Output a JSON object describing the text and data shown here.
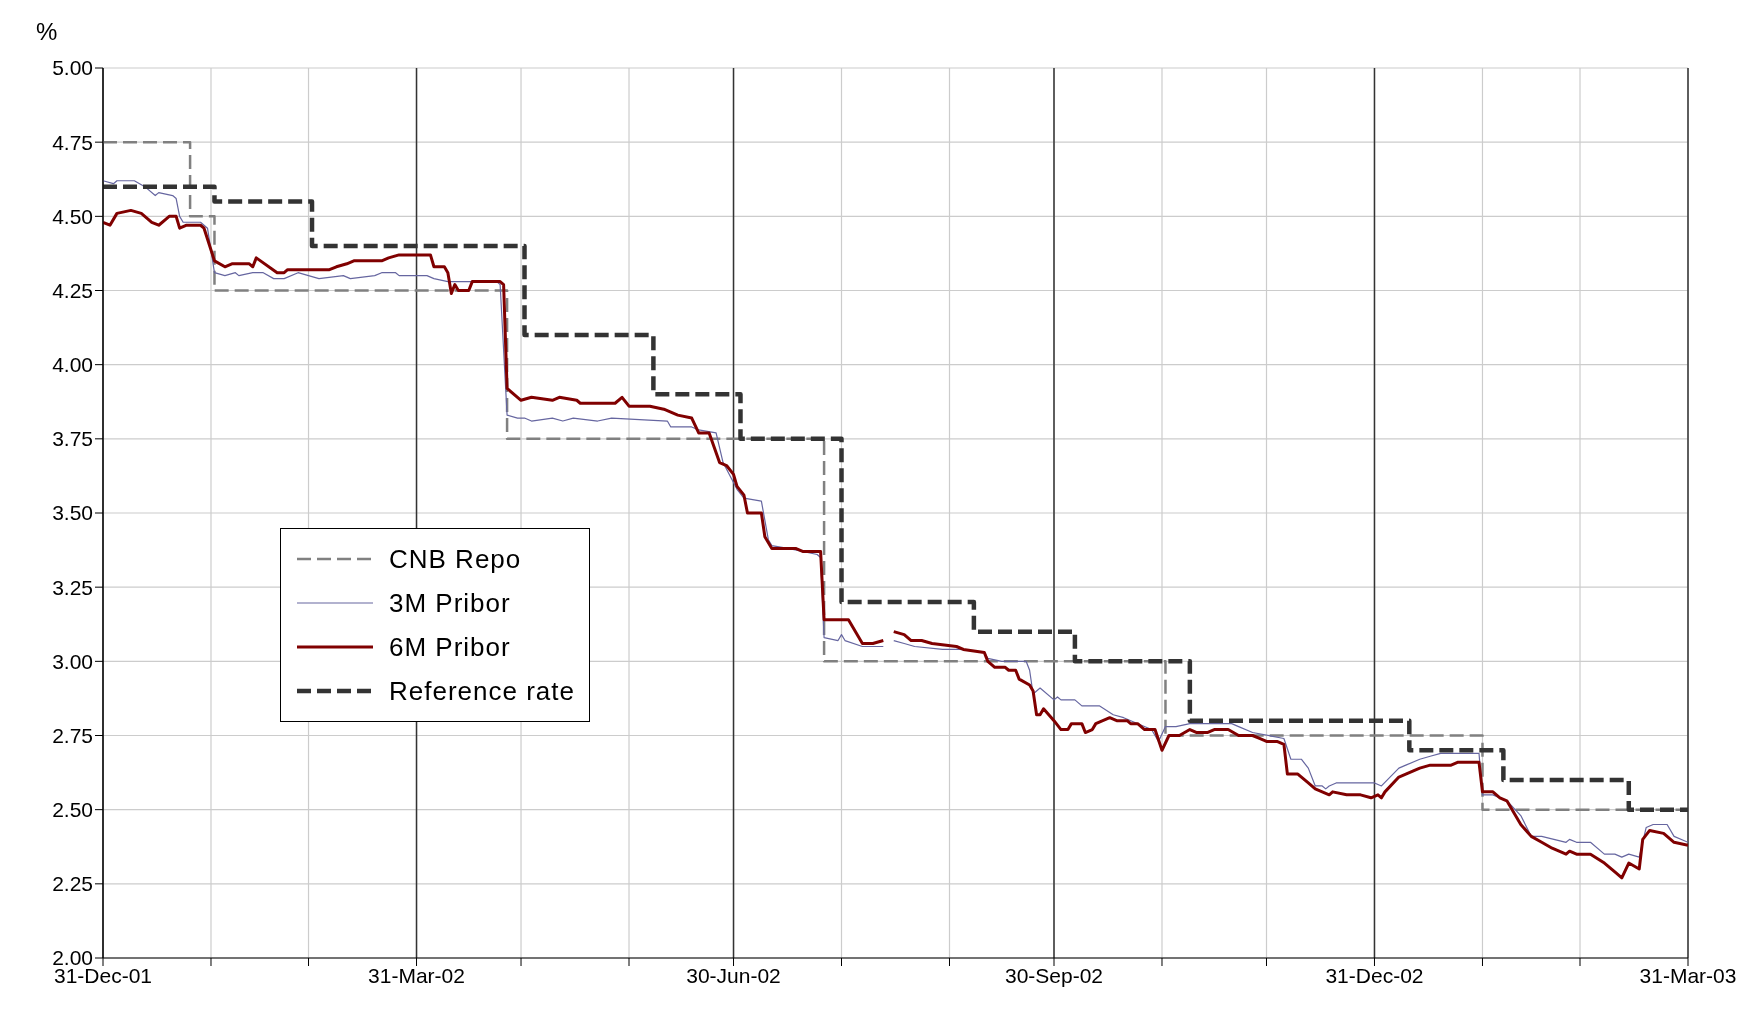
{
  "chart_data": {
    "type": "line",
    "ylabel": "%",
    "xlim": [
      "2001-12-31",
      "2003-03-31"
    ],
    "ylim": [
      2,
      5
    ],
    "yticks": [
      {
        "value": 2,
        "label": "2.00"
      },
      {
        "value": 2.25,
        "label": "2.25"
      },
      {
        "value": 2.5,
        "label": "2.50"
      },
      {
        "value": 2.75,
        "label": "2.75"
      },
      {
        "value": 3,
        "label": "3.00"
      },
      {
        "value": 3.25,
        "label": "3.25"
      },
      {
        "value": 3.5,
        "label": "3.50"
      },
      {
        "value": 3.75,
        "label": "3.75"
      },
      {
        "value": 4,
        "label": "4.00"
      },
      {
        "value": 4.25,
        "label": "4.25"
      },
      {
        "value": 4.5,
        "label": "4.50"
      },
      {
        "value": 4.75,
        "label": "4.75"
      },
      {
        "value": 5,
        "label": "5.00"
      }
    ],
    "xticks": [
      {
        "value": "2001-12-31",
        "label": "31-Dec-01"
      },
      {
        "value": "2002-01-31",
        "label": null
      },
      {
        "value": "2002-02-28",
        "label": null
      },
      {
        "value": "2002-03-31",
        "label": "31-Mar-02"
      },
      {
        "value": "2002-04-30",
        "label": null
      },
      {
        "value": "2002-05-31",
        "label": null
      },
      {
        "value": "2002-06-30",
        "label": "30-Jun-02"
      },
      {
        "value": "2002-07-31",
        "label": null
      },
      {
        "value": "2002-08-31",
        "label": null
      },
      {
        "value": "2002-09-30",
        "label": "30-Sep-02"
      },
      {
        "value": "2002-10-31",
        "label": null
      },
      {
        "value": "2002-11-30",
        "label": null
      },
      {
        "value": "2002-12-31",
        "label": "31-Dec-02"
      },
      {
        "value": "2003-01-31",
        "label": null
      },
      {
        "value": "2003-02-28",
        "label": null
      },
      {
        "value": "2003-03-31",
        "label": "31-Mar-03"
      }
    ],
    "grid": true,
    "legend": "center left",
    "marker": "none",
    "series": [
      {
        "name": "CNB Repo",
        "type": "step",
        "line_style": "dashed",
        "color": "#808080",
        "x": [
          "2001-12-31",
          "2002-01-25",
          "2002-02-01",
          "2002-04-26",
          "2002-07-26",
          "2002-11-01",
          "2003-01-31",
          "2003-03-31"
        ],
        "values": [
          4.75,
          4.5,
          4.25,
          3.75,
          3.0,
          2.75,
          2.5,
          2.5
        ]
      },
      {
        "name": "3M Pribor",
        "color": "#6666a0",
        "x": [
          "2001-12-31",
          "2002-01-03",
          "2002-01-04",
          "2002-01-09",
          "2002-01-12",
          "2002-01-15",
          "2002-01-16",
          "2002-01-20",
          "2002-01-21",
          "2002-01-22",
          "2002-01-23",
          "2002-01-28",
          "2002-01-30",
          "2002-02-01",
          "2002-02-04",
          "2002-02-07",
          "2002-02-08",
          "2002-02-12",
          "2002-02-15",
          "2002-02-18",
          "2002-02-21",
          "2002-02-25",
          "2002-03-03",
          "2002-03-10",
          "2002-03-12",
          "2002-03-19",
          "2002-03-21",
          "2002-03-25",
          "2002-03-26",
          "2002-04-03",
          "2002-04-05",
          "2002-04-09",
          "2002-04-23",
          "2002-04-24",
          "2002-04-26",
          "2002-04-29",
          "2002-05-01",
          "2002-05-03",
          "2002-05-09",
          "2002-05-12",
          "2002-05-15",
          "2002-05-22",
          "2002-05-26",
          "2002-06-11",
          "2002-06-12",
          "2002-06-18",
          "2002-06-20",
          "2002-06-25",
          "2002-06-27",
          "2002-07-01",
          "2002-07-03",
          "2002-07-08",
          "2002-07-10",
          "2002-07-11",
          "2002-07-16",
          "2002-07-24",
          "2002-07-25",
          "2002-07-26",
          "2002-07-30",
          "2002-07-31",
          "2002-08-01",
          "2002-08-06",
          "2002-08-12",
          "2002-08-13",
          "2002-08-15",
          "2002-08-18",
          "2002-08-21",
          "2002-08-29",
          "2002-09-03",
          "2002-09-10",
          "2002-09-11",
          "2002-09-15",
          "2002-09-22",
          "2002-09-23",
          "2002-09-24",
          "2002-09-26",
          "2002-09-30",
          "2002-10-01",
          "2002-10-02",
          "2002-10-06",
          "2002-10-08",
          "2002-10-13",
          "2002-10-17",
          "2002-10-20",
          "2002-10-28",
          "2002-10-30",
          "2002-11-01",
          "2002-11-04",
          "2002-11-08",
          "2002-11-20",
          "2002-11-22",
          "2002-11-26",
          "2002-12-05",
          "2002-12-07",
          "2002-12-10",
          "2002-12-12",
          "2002-12-14",
          "2002-12-16",
          "2002-12-17",
          "2002-12-18",
          "2002-12-20",
          "2002-12-31",
          "2003-01-02",
          "2003-01-07",
          "2003-01-09",
          "2003-01-13",
          "2003-01-16",
          "2003-01-19",
          "2003-01-30",
          "2003-01-31",
          "2003-02-03",
          "2003-02-07",
          "2003-02-11",
          "2003-02-14",
          "2003-02-17",
          "2003-02-24",
          "2003-02-25",
          "2003-02-27",
          "2003-03-03",
          "2003-03-07",
          "2003-03-10",
          "2003-03-12",
          "2003-03-14",
          "2003-03-17",
          "2003-03-19",
          "2003-03-21",
          "2003-03-25",
          "2003-03-27",
          "2003-03-31"
        ],
        "values": [
          4.62,
          4.61,
          4.62,
          4.62,
          4.6,
          4.57,
          4.58,
          4.57,
          4.56,
          4.5,
          4.48,
          4.48,
          4.46,
          4.31,
          4.3,
          4.31,
          4.3,
          4.31,
          4.31,
          4.29,
          4.29,
          4.31,
          4.29,
          4.3,
          4.29,
          4.3,
          4.31,
          4.31,
          4.3,
          4.3,
          4.29,
          4.28,
          4.28,
          4.27,
          3.83,
          3.82,
          3.82,
          3.81,
          3.82,
          3.81,
          3.82,
          3.81,
          3.82,
          3.81,
          3.79,
          3.79,
          3.78,
          3.77,
          3.67,
          3.58,
          3.55,
          3.54,
          3.41,
          3.39,
          3.38,
          3.36,
          3.35,
          3.08,
          3.07,
          3.09,
          3.07,
          3.05,
          3.05,
          null,
          3.07,
          3.06,
          3.05,
          3.04,
          3.04,
          3.03,
          3.01,
          3.0,
          3.0,
          2.97,
          2.89,
          2.91,
          2.87,
          2.88,
          2.87,
          2.87,
          2.85,
          2.85,
          2.82,
          2.81,
          2.77,
          2.73,
          2.78,
          2.78,
          2.79,
          2.79,
          2.78,
          2.76,
          2.74,
          2.67,
          2.67,
          2.64,
          2.58,
          2.58,
          2.57,
          2.58,
          2.59,
          2.59,
          2.58,
          2.64,
          2.65,
          2.67,
          2.68,
          2.69,
          2.69,
          2.55,
          2.55,
          2.53,
          2.48,
          2.41,
          2.41,
          2.39,
          2.4,
          2.39,
          2.39,
          2.35,
          2.35,
          2.34,
          2.35,
          2.34,
          2.44,
          2.45,
          2.45,
          2.41,
          2.39
        ]
      },
      {
        "name": "6M Pribor",
        "color": "#800000",
        "x": [
          "2001-12-31",
          "2002-01-02",
          "2002-01-04",
          "2002-01-08",
          "2002-01-11",
          "2002-01-14",
          "2002-01-16",
          "2002-01-18",
          "2002-01-19",
          "2002-01-21",
          "2002-01-22",
          "2002-01-24",
          "2002-01-28",
          "2002-01-29",
          "2002-02-01",
          "2002-02-04",
          "2002-02-06",
          "2002-02-11",
          "2002-02-12",
          "2002-02-13",
          "2002-02-19",
          "2002-02-21",
          "2002-02-22",
          "2002-03-06",
          "2002-03-08",
          "2002-03-11",
          "2002-03-13",
          "2002-03-21",
          "2002-03-23",
          "2002-03-26",
          "2002-04-04",
          "2002-04-05",
          "2002-04-08",
          "2002-04-09",
          "2002-04-10",
          "2002-04-11",
          "2002-04-12",
          "2002-04-15",
          "2002-04-16",
          "2002-04-24",
          "2002-04-25",
          "2002-04-26",
          "2002-04-30",
          "2002-05-03",
          "2002-05-09",
          "2002-05-11",
          "2002-05-16",
          "2002-05-17",
          "2002-05-27",
          "2002-05-29",
          "2002-05-31",
          "2002-06-06",
          "2002-06-10",
          "2002-06-12",
          "2002-06-14",
          "2002-06-18",
          "2002-06-20",
          "2002-06-23",
          "2002-06-26",
          "2002-06-28",
          "2002-06-30",
          "2002-07-01",
          "2002-07-03",
          "2002-07-04",
          "2002-07-08",
          "2002-07-09",
          "2002-07-11",
          "2002-07-18",
          "2002-07-20",
          "2002-07-25",
          "2002-07-26",
          "2002-08-02",
          "2002-08-06",
          "2002-08-09",
          "2002-08-12",
          "2002-08-13",
          "2002-08-15",
          "2002-08-18",
          "2002-08-20",
          "2002-08-23",
          "2002-08-26",
          "2002-09-02",
          "2002-09-04",
          "2002-09-10",
          "2002-09-11",
          "2002-09-13",
          "2002-09-16",
          "2002-09-17",
          "2002-09-19",
          "2002-09-20",
          "2002-09-23",
          "2002-09-24",
          "2002-09-25",
          "2002-09-26",
          "2002-09-27",
          "2002-09-30",
          "2002-10-02",
          "2002-10-04",
          "2002-10-05",
          "2002-10-08",
          "2002-10-09",
          "2002-10-11",
          "2002-10-12",
          "2002-10-16",
          "2002-10-18",
          "2002-10-21",
          "2002-10-22",
          "2002-10-24",
          "2002-10-26",
          "2002-10-29",
          "2002-10-31",
          "2002-11-02",
          "2002-11-05",
          "2002-11-08",
          "2002-11-10",
          "2002-11-13",
          "2002-11-15",
          "2002-11-19",
          "2002-11-22",
          "2002-11-26",
          "2002-11-28",
          "2002-11-30",
          "2002-12-03",
          "2002-12-05",
          "2002-12-06",
          "2002-12-09",
          "2002-12-12",
          "2002-12-14",
          "2002-12-16",
          "2002-12-18",
          "2002-12-19",
          "2002-12-23",
          "2002-12-27",
          "2002-12-30",
          "2003-01-01",
          "2003-01-02",
          "2003-01-03",
          "2003-01-07",
          "2003-01-09",
          "2003-01-13",
          "2003-01-16",
          "2003-01-22",
          "2003-01-24",
          "2003-01-30",
          "2003-01-31",
          "2003-02-03",
          "2003-02-05",
          "2003-02-07",
          "2003-02-11",
          "2003-02-14",
          "2003-02-17",
          "2003-02-20",
          "2003-02-24",
          "2003-02-25",
          "2003-02-27",
          "2003-03-03",
          "2003-03-07",
          "2003-03-10",
          "2003-03-12",
          "2003-03-14",
          "2003-03-17",
          "2003-03-18",
          "2003-03-20",
          "2003-03-24",
          "2003-03-27",
          "2003-03-31"
        ],
        "values": [
          4.48,
          4.47,
          4.51,
          4.52,
          4.51,
          4.48,
          4.47,
          4.49,
          4.5,
          4.5,
          4.46,
          4.47,
          4.47,
          4.46,
          4.35,
          4.33,
          4.34,
          4.34,
          4.33,
          4.36,
          4.31,
          4.31,
          4.32,
          4.32,
          4.33,
          4.34,
          4.35,
          4.35,
          4.36,
          4.37,
          4.37,
          4.33,
          4.33,
          4.31,
          4.24,
          4.27,
          4.25,
          4.25,
          4.28,
          4.28,
          4.27,
          3.92,
          3.88,
          3.89,
          3.88,
          3.89,
          3.88,
          3.87,
          3.87,
          3.89,
          3.86,
          3.86,
          3.85,
          3.84,
          3.83,
          3.82,
          3.77,
          3.77,
          3.67,
          3.66,
          3.63,
          3.59,
          3.56,
          3.5,
          3.5,
          3.42,
          3.38,
          3.38,
          3.37,
          3.37,
          3.14,
          3.14,
          3.06,
          3.06,
          3.07,
          null,
          3.1,
          3.09,
          3.07,
          3.07,
          3.06,
          3.05,
          3.04,
          3.03,
          3.0,
          2.98,
          2.98,
          2.97,
          2.97,
          2.94,
          2.92,
          2.9,
          2.82,
          2.82,
          2.84,
          2.8,
          2.77,
          2.77,
          2.79,
          2.79,
          2.76,
          2.77,
          2.79,
          2.81,
          2.8,
          2.8,
          2.79,
          2.79,
          2.77,
          2.77,
          2.7,
          2.75,
          2.75,
          2.77,
          2.76,
          2.76,
          2.77,
          2.77,
          2.75,
          2.75,
          2.74,
          2.73,
          2.73,
          2.72,
          2.62,
          2.62,
          2.59,
          2.57,
          2.56,
          2.55,
          2.56,
          2.55,
          2.55,
          2.54,
          2.55,
          2.54,
          2.56,
          2.61,
          2.62,
          2.64,
          2.65,
          2.65,
          2.66,
          2.66,
          2.56,
          2.56,
          2.54,
          2.53,
          2.45,
          2.41,
          2.39,
          2.37,
          2.35,
          2.36,
          2.35,
          2.35,
          2.32,
          2.29,
          2.27,
          2.32,
          2.3,
          2.4,
          2.43,
          2.42,
          2.39,
          2.38
        ]
      },
      {
        "name": "Reference rate",
        "type": "step",
        "line_style": "dashed",
        "color": "#333333",
        "x": [
          "2001-12-31",
          "2002-02-01",
          "2002-03-01",
          "2002-05-01",
          "2002-06-07",
          "2002-07-02",
          "2002-07-31",
          "2002-09-07",
          "2002-10-06",
          "2002-11-08",
          "2003-01-10",
          "2003-02-06",
          "2003-03-14",
          "2003-03-31"
        ],
        "values": [
          4.6,
          4.55,
          4.4,
          4.1,
          3.9,
          3.75,
          3.2,
          3.1,
          3.0,
          2.8,
          2.7,
          2.6,
          2.5,
          2.5
        ]
      }
    ]
  }
}
